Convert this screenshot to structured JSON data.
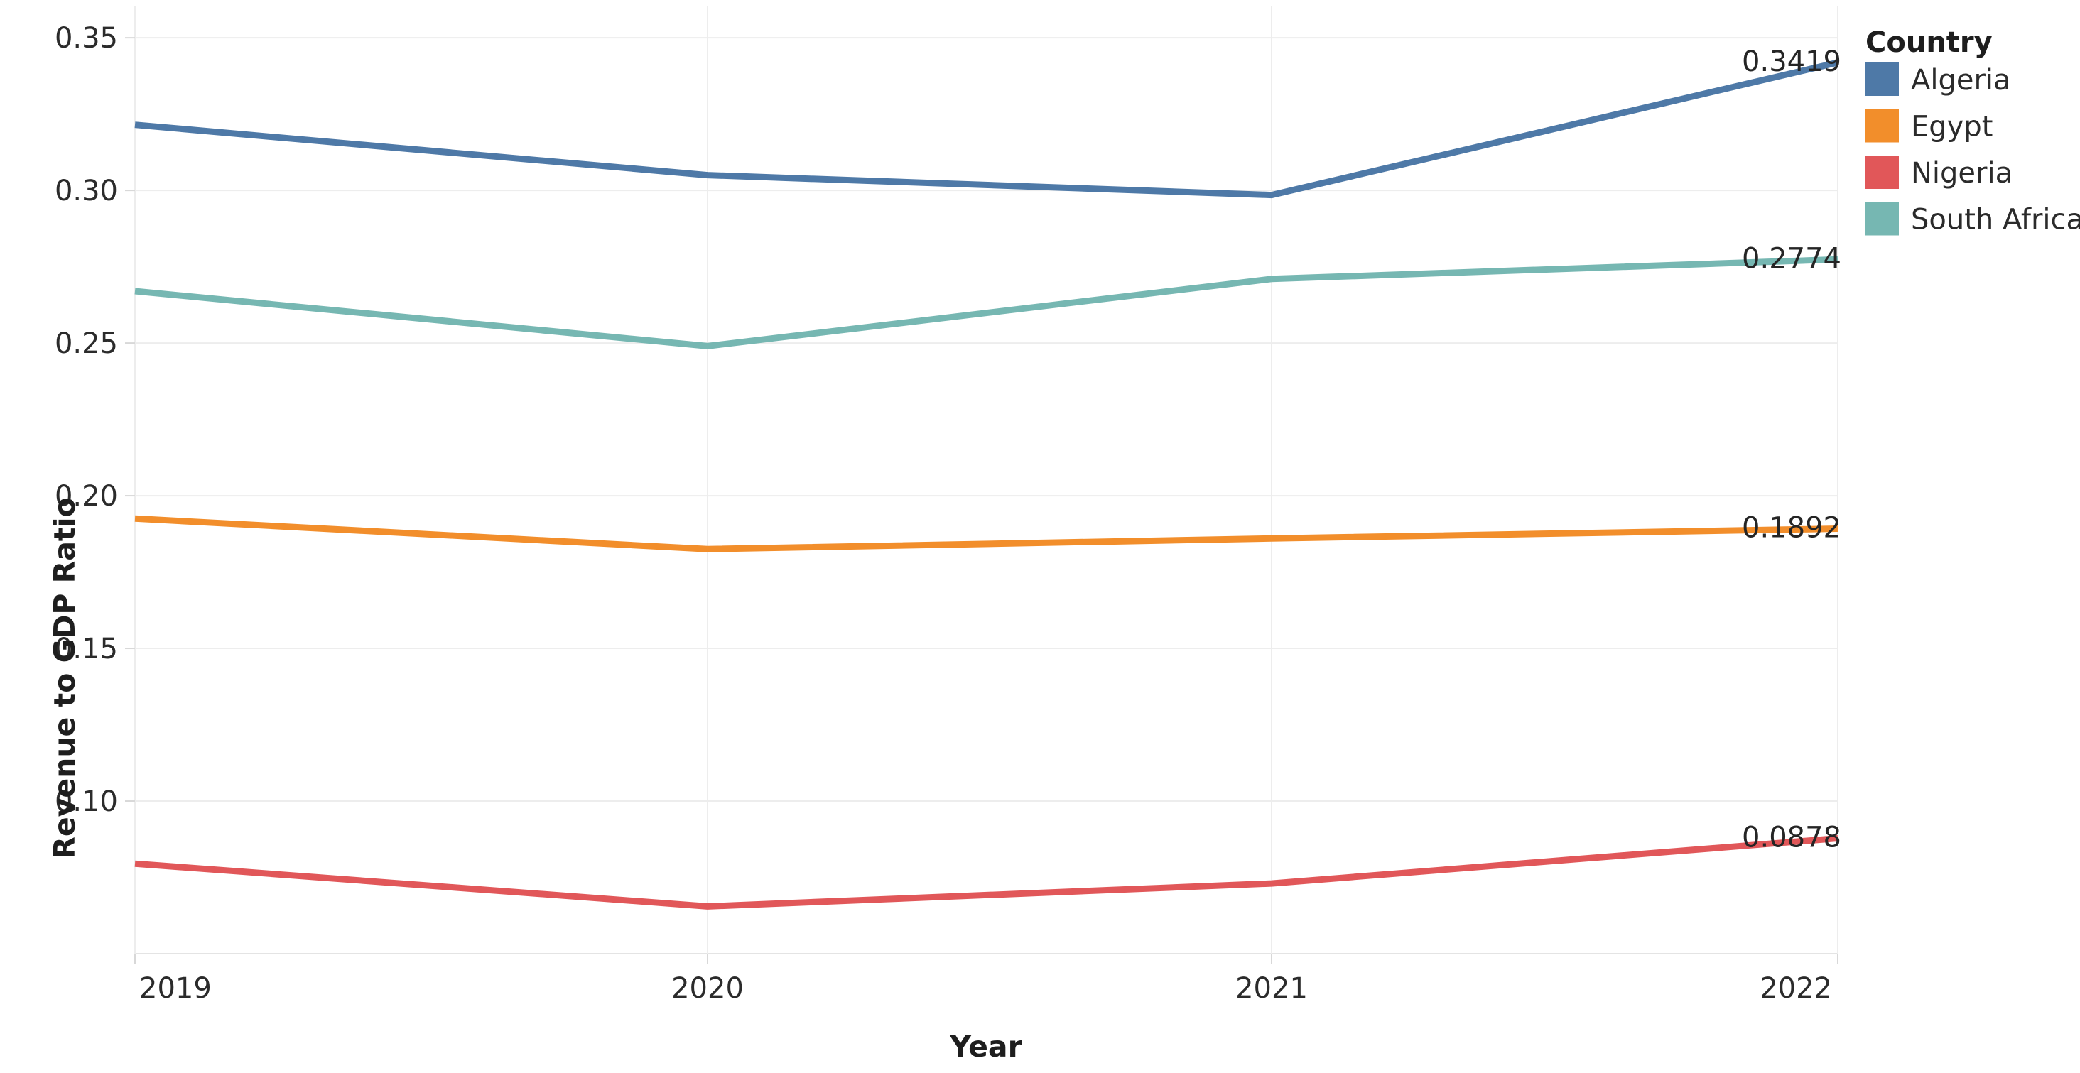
{
  "chart_data": {
    "type": "line",
    "title": "",
    "xlabel": "Year",
    "ylabel": "Revenue to GDP Ratio",
    "x": [
      2019,
      2020,
      2021,
      2022
    ],
    "x_tick_labels": [
      "2019",
      "2020",
      "2021",
      "2022"
    ],
    "y_tick_labels": [
      "0.10",
      "0.15",
      "0.20",
      "0.25",
      "0.30",
      "0.35"
    ],
    "yticks": [
      0.1,
      0.15,
      0.2,
      0.25,
      0.3,
      0.35
    ],
    "ylim": [
      0.05,
      0.36
    ],
    "grid": true,
    "legend_title": "Country",
    "legend_position": "top-right-outside",
    "series": [
      {
        "name": "Algeria",
        "color": "#4e79a7",
        "values": [
          0.3215,
          0.305,
          0.2985,
          0.3419
        ],
        "end_label": "0.3419"
      },
      {
        "name": "Egypt",
        "color": "#f28e2b",
        "values": [
          0.1925,
          0.1825,
          0.186,
          0.1892
        ],
        "end_label": "0.1892"
      },
      {
        "name": "Nigeria",
        "color": "#e15759",
        "values": [
          0.0795,
          0.0655,
          0.073,
          0.0878
        ],
        "end_label": "0.0878"
      },
      {
        "name": "South Africa",
        "color": "#76b7b2",
        "values": [
          0.267,
          0.249,
          0.271,
          0.2774
        ],
        "end_label": "0.2774"
      }
    ]
  }
}
